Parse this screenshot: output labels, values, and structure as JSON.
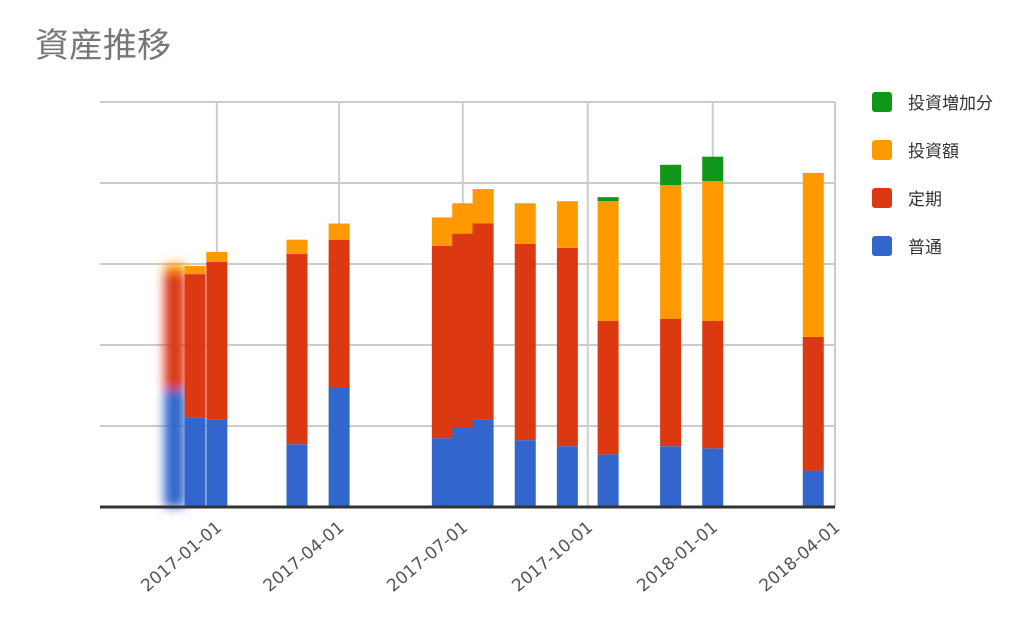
{
  "chart_data": {
    "type": "bar",
    "stacked": true,
    "title": "資産推移",
    "x_ticks": [
      "2017-01-01",
      "2017-04-01",
      "2017-07-01",
      "2017-10-01",
      "2018-01-01",
      "2018-04-01"
    ],
    "ylim": [
      0,
      100
    ],
    "grid": true,
    "legend_position": "right",
    "series": [
      {
        "name": "普通",
        "color": "#3366cc"
      },
      {
        "name": "定期",
        "color": "#dc3912"
      },
      {
        "name": "投資額",
        "color": "#ff9900"
      },
      {
        "name": "投資増加分",
        "color": "#109618"
      }
    ],
    "bars": [
      {
        "date": "2016-12-01",
        "values": [
          29,
          29,
          2,
          0
        ]
      },
      {
        "date": "2016-12-16",
        "values": [
          22,
          35.5,
          2,
          0
        ]
      },
      {
        "date": "2017-01-01",
        "values": [
          21.5,
          39,
          2.5,
          0
        ]
      },
      {
        "date": "2017-03-01",
        "values": [
          15.5,
          47,
          3.5,
          0
        ]
      },
      {
        "date": "2017-04-01",
        "values": [
          29.5,
          36.5,
          4,
          0
        ]
      },
      {
        "date": "2017-06-16",
        "values": [
          17,
          47.5,
          7,
          0
        ]
      },
      {
        "date": "2017-07-01",
        "values": [
          19.5,
          48,
          7.5,
          0
        ]
      },
      {
        "date": "2017-07-16",
        "values": [
          21.5,
          48.5,
          8.5,
          0
        ]
      },
      {
        "date": "2017-08-16",
        "values": [
          16.5,
          48.5,
          10,
          0
        ]
      },
      {
        "date": "2017-09-16",
        "values": [
          15,
          49,
          11.5,
          0
        ]
      },
      {
        "date": "2017-10-16",
        "values": [
          13,
          33,
          29.5,
          1
        ]
      },
      {
        "date": "2017-12-01",
        "values": [
          15,
          31.5,
          33,
          5
        ]
      },
      {
        "date": "2018-01-01",
        "values": [
          14.5,
          31.5,
          34.5,
          6
        ]
      },
      {
        "date": "2018-03-16",
        "values": [
          9,
          33,
          40.5,
          0
        ]
      }
    ],
    "legend_order": [
      "投資増加分",
      "投資額",
      "定期",
      "普通"
    ]
  }
}
